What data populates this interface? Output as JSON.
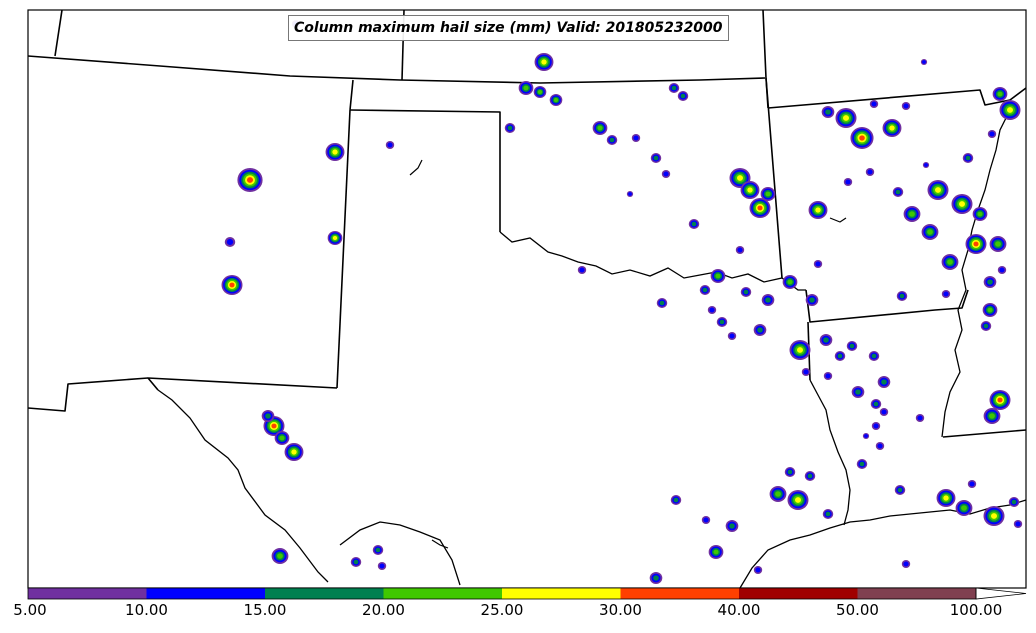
{
  "map": {
    "title": "Column maximum hail size (mm) Valid: 201805232000",
    "units": "mm",
    "valid_time": "201805232000"
  },
  "colorbar": {
    "labels": [
      "5.00",
      "10.00",
      "15.00",
      "20.00",
      "25.00",
      "30.00",
      "40.00",
      "50.00",
      "100.00"
    ],
    "bins": [
      {
        "from": 5,
        "to": 10,
        "color": "#7030a0"
      },
      {
        "from": 10,
        "to": 15,
        "color": "#0000ff"
      },
      {
        "from": 15,
        "to": 20,
        "color": "#008050"
      },
      {
        "from": 20,
        "to": 25,
        "color": "#40c800"
      },
      {
        "from": 25,
        "to": 30,
        "color": "#ffff00"
      },
      {
        "from": 30,
        "to": 40,
        "color": "#ff4000"
      },
      {
        "from": 40,
        "to": 50,
        "color": "#a00000"
      },
      {
        "from": 50,
        "to": 100,
        "color": "#804050"
      }
    ]
  }
}
